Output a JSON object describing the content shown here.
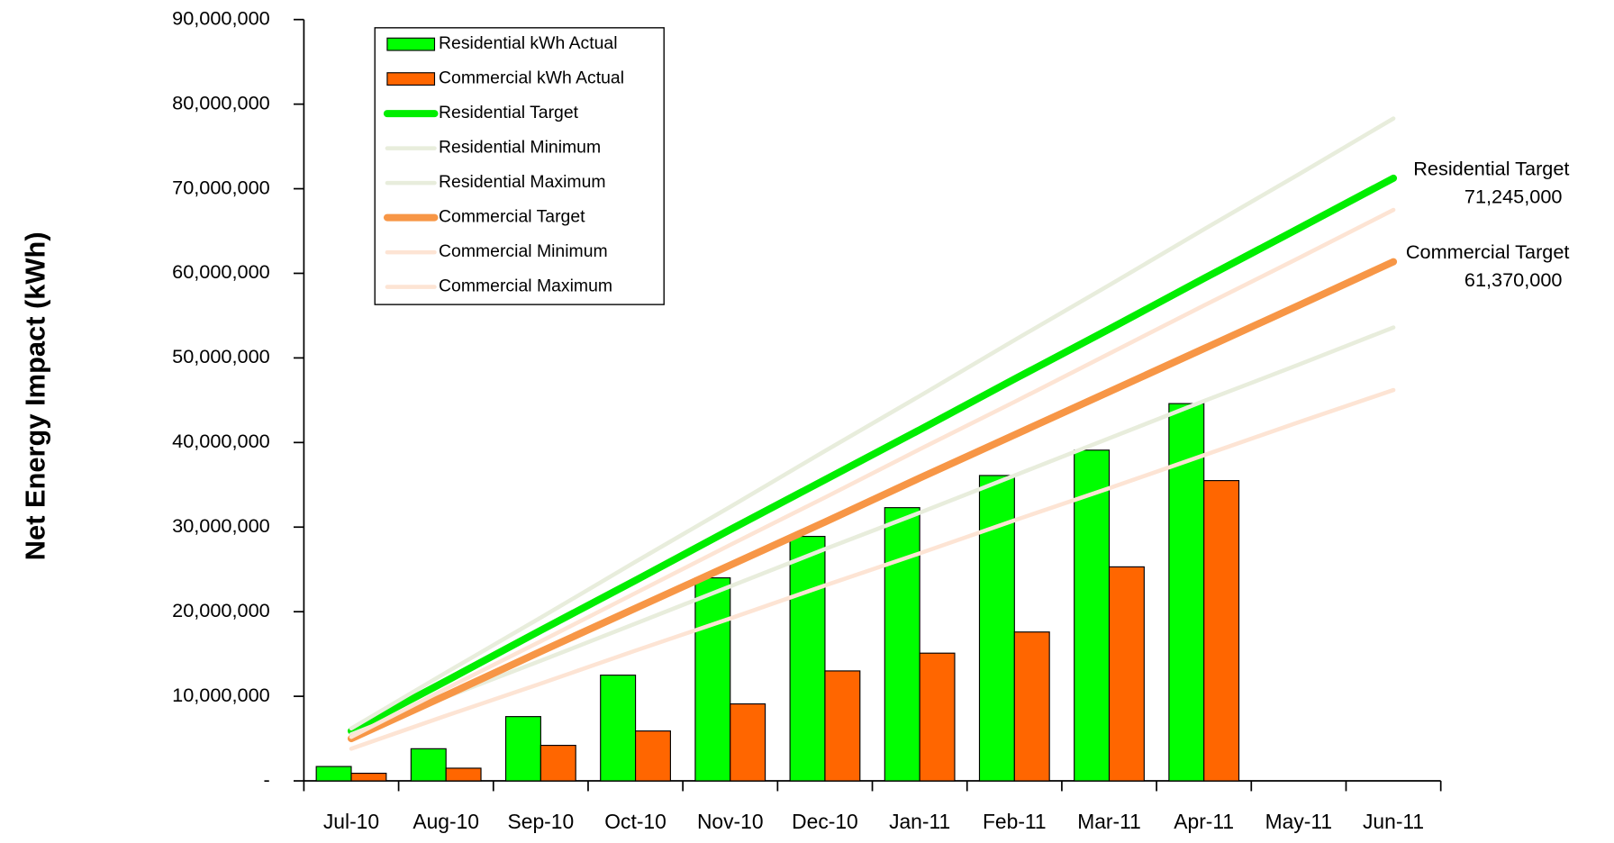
{
  "chart_data": {
    "type": "bar",
    "y_axis_label": "Net Energy Impact (kWh)",
    "categories": [
      "Jul-10",
      "Aug-10",
      "Sep-10",
      "Oct-10",
      "Nov-10",
      "Dec-10",
      "Jan-11",
      "Feb-11",
      "Mar-11",
      "Apr-11",
      "May-11",
      "Jun-11"
    ],
    "ylim": [
      0,
      90000000
    ],
    "yticks": [
      {
        "value": 0,
        "label": "-"
      },
      {
        "value": 10000000,
        "label": "10,000,000"
      },
      {
        "value": 20000000,
        "label": "20,000,000"
      },
      {
        "value": 30000000,
        "label": "30,000,000"
      },
      {
        "value": 40000000,
        "label": "40,000,000"
      },
      {
        "value": 50000000,
        "label": "50,000,000"
      },
      {
        "value": 60000000,
        "label": "60,000,000"
      },
      {
        "value": 70000000,
        "label": "70,000,000"
      },
      {
        "value": 80000000,
        "label": "80,000,000"
      },
      {
        "value": 90000000,
        "label": "90,000,000"
      }
    ],
    "legend": "upper left",
    "series": [
      {
        "name": "Residential kWh Actual",
        "type": "bar",
        "color": "#00ff00",
        "values": [
          1700000,
          3800000,
          7600000,
          12500000,
          24000000,
          28900000,
          32300000,
          36100000,
          39100000,
          44600000,
          null,
          null
        ]
      },
      {
        "name": "Commercial kWh Actual",
        "type": "bar",
        "color": "#ff6600",
        "values": [
          900000,
          1500000,
          4200000,
          5900000,
          9100000,
          13000000,
          15100000,
          17600000,
          25300000,
          35500000,
          null,
          null
        ]
      },
      {
        "name": "Residential Target",
        "type": "line",
        "color": "#00ee00",
        "width": 7,
        "values": [
          5900000,
          11800000,
          17800000,
          23700000,
          29700000,
          35600000,
          41500000,
          47500000,
          53400000,
          59400000,
          65300000,
          71245000
        ],
        "value_labels": [
          null,
          null,
          null,
          null,
          null,
          null,
          null,
          null,
          null,
          null,
          null,
          "71,245,000"
        ]
      },
      {
        "name": "Residential Minimum",
        "type": "line",
        "color": "#e8eddc",
        "width": 4,
        "values": [
          5500000,
          9900000,
          14200000,
          18600000,
          23000000,
          27400000,
          31700000,
          36100000,
          40500000,
          44900000,
          49200000,
          53600000
        ]
      },
      {
        "name": "Residential Maximum",
        "type": "line",
        "color": "#e8eddc",
        "width": 4,
        "values": [
          6200000,
          12800000,
          19300000,
          25900000,
          32400000,
          39000000,
          45500000,
          52100000,
          58600000,
          65200000,
          71700000,
          78300000
        ]
      },
      {
        "name": "Commercial Target",
        "type": "line",
        "color": "#f79646",
        "width": 7,
        "values": [
          5000000,
          10100000,
          15300000,
          20400000,
          25500000,
          30600000,
          35800000,
          40900000,
          46000000,
          51100000,
          56200000,
          61370000
        ],
        "value_labels": [
          null,
          null,
          null,
          null,
          null,
          null,
          null,
          null,
          null,
          null,
          null,
          "61,370,000"
        ]
      },
      {
        "name": "Commercial Minimum",
        "type": "line",
        "color": "#fde4d4",
        "width": 4,
        "values": [
          3800000,
          7700000,
          11500000,
          15400000,
          19200000,
          23100000,
          26900000,
          30800000,
          34600000,
          38500000,
          42400000,
          46200000
        ]
      },
      {
        "name": "Commercial Maximum",
        "type": "line",
        "color": "#fde4d4",
        "width": 4,
        "values": [
          5200000,
          10900000,
          16500000,
          22200000,
          27900000,
          33500000,
          39200000,
          44800000,
          50500000,
          56200000,
          61800000,
          67500000
        ]
      }
    ]
  }
}
